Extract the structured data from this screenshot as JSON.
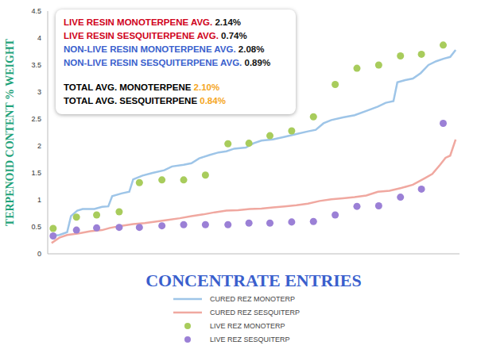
{
  "chart_data": {
    "type": "line",
    "x_label": "CONCENTRATE ENTRIES",
    "y_label": "TERPENOID CONTENT % WEIGHT",
    "xlim": [
      0,
      530
    ],
    "ylim": [
      0,
      4.5
    ],
    "yticks": [
      0,
      0.5,
      1,
      1.5,
      2,
      2.5,
      3,
      3.5,
      4,
      4.5
    ],
    "tick_labels": "y",
    "grid": false,
    "legend": "bottom",
    "annotations": [
      {
        "text": "LIVE RESIN MONOTERPENE AVG.",
        "value": "2.14%",
        "color": "#d0021b"
      },
      {
        "text": "LIVE RESIN SESQUITERPENE AVG.",
        "value": "0.74%",
        "color": "#d0021b"
      },
      {
        "text": "NON-LIVE RESIN MONOTERPENE AVG.",
        "value": "2.08%",
        "color": "#3a5fcd"
      },
      {
        "text": "NON-LIVE RESIN SESQUITERPENE AVG.",
        "value": "0.89%",
        "color": "#3a5fcd"
      },
      {
        "text": "TOTAL AVG. MONOTERPENE",
        "value": "2.10%",
        "color": "#000000"
      },
      {
        "text": "TOTAL AVG. SESQUITERPENE",
        "value": "0.84%",
        "color": "#000000"
      }
    ],
    "series": [
      {
        "name": "CURED REZ MONOTERP",
        "type": "line",
        "color": "#9ec5e8",
        "x": [
          5,
          15,
          25,
          30,
          38,
          45,
          60,
          70,
          78,
          83,
          95,
          105,
          110,
          122,
          135,
          150,
          160,
          175,
          185,
          195,
          208,
          220,
          230,
          240,
          255,
          265,
          275,
          290,
          305,
          320,
          335,
          345,
          355,
          365,
          380,
          395,
          410,
          425,
          435,
          445,
          450,
          460,
          470,
          480,
          490,
          500,
          510,
          518,
          525
        ],
        "values": [
          0.33,
          0.35,
          0.4,
          0.7,
          0.8,
          0.83,
          0.83,
          0.87,
          0.88,
          1.07,
          1.12,
          1.15,
          1.38,
          1.45,
          1.5,
          1.55,
          1.62,
          1.65,
          1.68,
          1.77,
          1.83,
          1.88,
          1.9,
          1.95,
          1.97,
          2.05,
          2.1,
          2.12,
          2.17,
          2.22,
          2.27,
          2.3,
          2.42,
          2.48,
          2.53,
          2.57,
          2.65,
          2.73,
          2.8,
          2.83,
          3.18,
          3.22,
          3.25,
          3.35,
          3.5,
          3.57,
          3.62,
          3.65,
          3.78
        ]
      },
      {
        "name": "CURED REZ SESQUITERP",
        "type": "line",
        "color": "#f0a8a0",
        "x": [
          5,
          15,
          25,
          40,
          55,
          70,
          80,
          95,
          110,
          125,
          140,
          155,
          170,
          185,
          200,
          215,
          230,
          245,
          260,
          275,
          290,
          305,
          320,
          335,
          350,
          365,
          380,
          395,
          410,
          425,
          440,
          455,
          470,
          485,
          495,
          505,
          512,
          518,
          525
        ],
        "values": [
          0.2,
          0.3,
          0.35,
          0.38,
          0.42,
          0.44,
          0.48,
          0.52,
          0.55,
          0.57,
          0.6,
          0.63,
          0.66,
          0.7,
          0.73,
          0.77,
          0.8,
          0.81,
          0.83,
          0.84,
          0.86,
          0.88,
          0.9,
          0.93,
          0.98,
          1.01,
          1.03,
          1.05,
          1.08,
          1.15,
          1.17,
          1.22,
          1.28,
          1.4,
          1.48,
          1.65,
          1.78,
          1.82,
          2.12
        ]
      },
      {
        "name": "LIVE REZ MONOTERP",
        "type": "scatter",
        "marker": "circle",
        "color": "#a8cc5c",
        "x": [
          7,
          37,
          63,
          92,
          118,
          147,
          175,
          203,
          232,
          259,
          286,
          314,
          342,
          370,
          398,
          426,
          454,
          481,
          509
        ],
        "values": [
          0.47,
          0.68,
          0.72,
          0.78,
          1.32,
          1.37,
          1.37,
          1.46,
          2.04,
          2.05,
          2.19,
          2.28,
          2.54,
          3.14,
          3.44,
          3.5,
          3.67,
          3.7,
          3.87
        ]
      },
      {
        "name": "LIVE REZ SESQUITERP",
        "type": "scatter",
        "marker": "circle",
        "color": "#9b80d6",
        "x": [
          7,
          37,
          63,
          92,
          118,
          147,
          175,
          203,
          232,
          259,
          286,
          314,
          342,
          370,
          398,
          426,
          454,
          481,
          509
        ],
        "values": [
          0.33,
          0.44,
          0.48,
          0.49,
          0.49,
          0.52,
          0.54,
          0.54,
          0.54,
          0.57,
          0.57,
          0.59,
          0.6,
          0.72,
          0.88,
          0.89,
          1.05,
          1.2,
          2.42
        ]
      }
    ]
  }
}
